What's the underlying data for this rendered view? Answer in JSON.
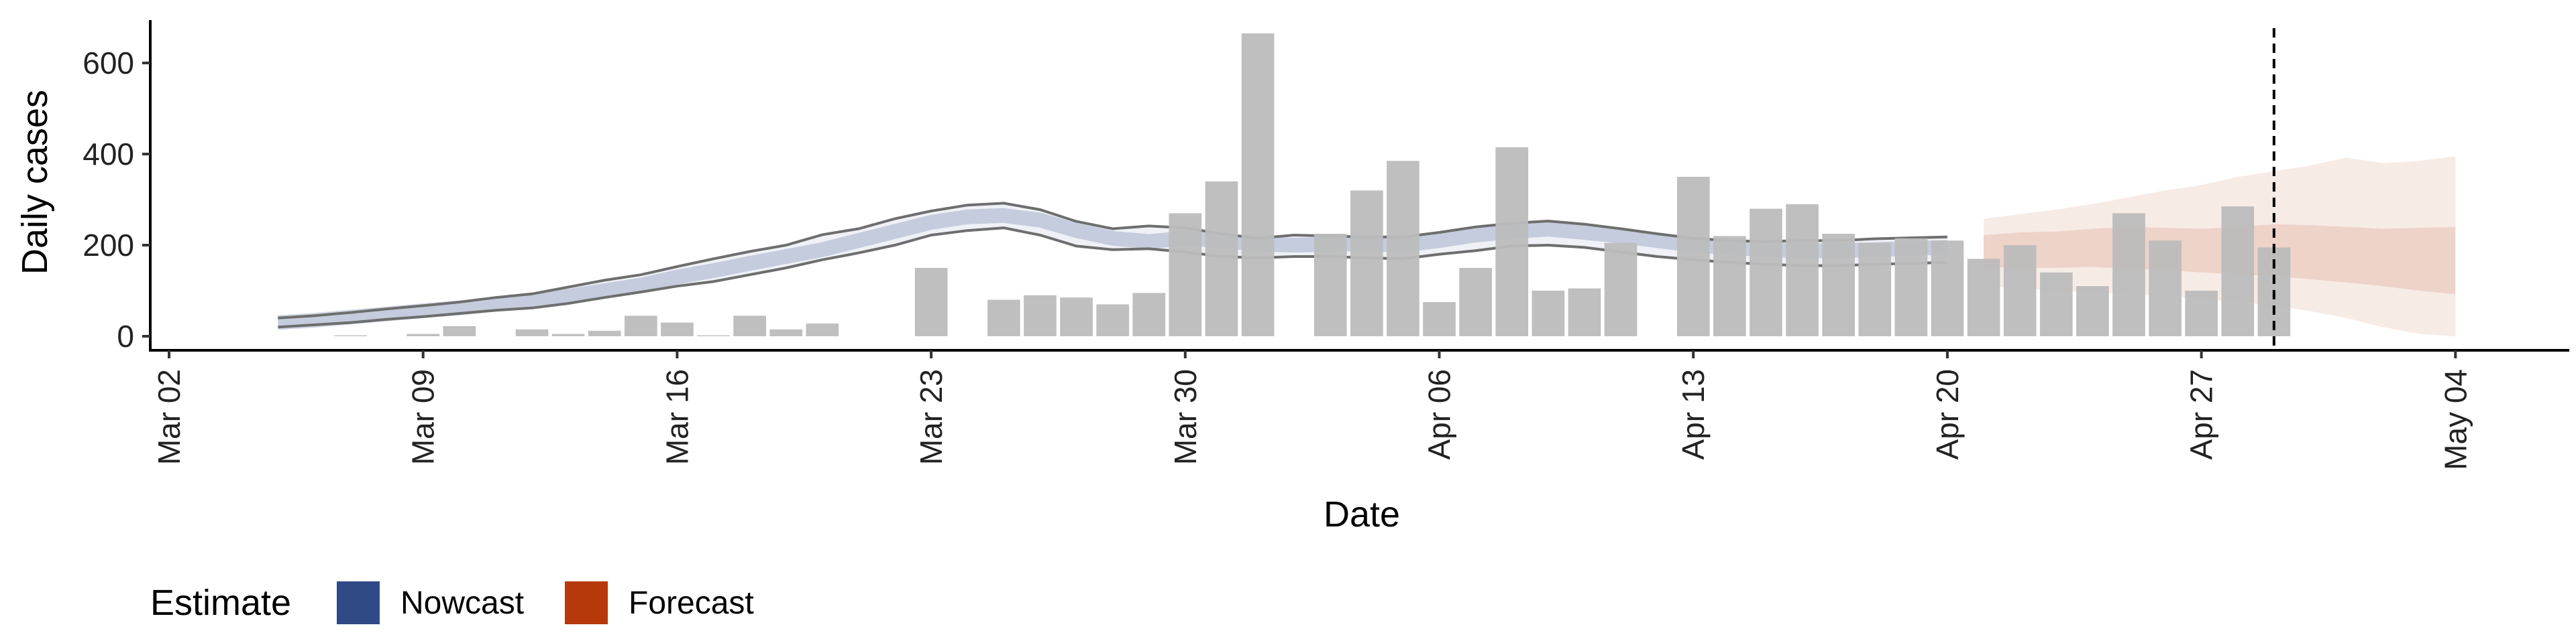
{
  "chart_data": {
    "type": "bar",
    "xlabel": "Date",
    "ylabel": "Daily cases",
    "xlim": [
      "2020-03-02",
      "2020-05-04"
    ],
    "ylim": [
      0,
      700
    ],
    "x_ticks": [
      "Mar 02",
      "Mar 09",
      "Mar 16",
      "Mar 23",
      "Mar 30",
      "Apr 06",
      "Apr 13",
      "Apr 20",
      "Apr 27",
      "May 04"
    ],
    "y_ticks": [
      0,
      200,
      400,
      600
    ],
    "grid": false,
    "reference_line_date": "2020-04-29",
    "legend": {
      "title": "Estimate",
      "position": "bottom-left",
      "entries": [
        {
          "label": "Nowcast",
          "color": "#2f4a86"
        },
        {
          "label": "Forecast",
          "color": "#b5390b"
        }
      ]
    },
    "colors": {
      "bars": "#bcbcbc",
      "nowcast": "#2f4a86",
      "forecast": "#b5390b",
      "outline": "#6e6e6e"
    },
    "bars": {
      "dates": [
        "2020-03-07",
        "2020-03-08",
        "2020-03-09",
        "2020-03-10",
        "2020-03-11",
        "2020-03-12",
        "2020-03-13",
        "2020-03-14",
        "2020-03-15",
        "2020-03-16",
        "2020-03-17",
        "2020-03-18",
        "2020-03-19",
        "2020-03-20",
        "2020-03-21",
        "2020-03-22",
        "2020-03-23",
        "2020-03-24",
        "2020-03-25",
        "2020-03-26",
        "2020-03-27",
        "2020-03-28",
        "2020-03-29",
        "2020-03-30",
        "2020-03-31",
        "2020-04-01",
        "2020-04-02",
        "2020-04-03",
        "2020-04-04",
        "2020-04-05",
        "2020-04-06",
        "2020-04-07",
        "2020-04-08",
        "2020-04-09",
        "2020-04-10",
        "2020-04-11",
        "2020-04-12",
        "2020-04-13",
        "2020-04-14",
        "2020-04-15",
        "2020-04-16",
        "2020-04-17",
        "2020-04-18",
        "2020-04-19",
        "2020-04-20",
        "2020-04-21",
        "2020-04-22",
        "2020-04-23",
        "2020-04-24",
        "2020-04-25",
        "2020-04-26",
        "2020-04-27",
        "2020-04-28",
        "2020-04-29"
      ],
      "values": [
        2,
        0,
        5,
        22,
        0,
        15,
        5,
        12,
        45,
        30,
        2,
        45,
        15,
        28,
        0,
        0,
        150,
        0,
        80,
        90,
        85,
        70,
        95,
        270,
        340,
        665,
        0,
        225,
        320,
        385,
        75,
        150,
        415,
        100,
        105,
        205,
        0,
        350,
        220,
        280,
        290,
        225,
        205,
        215,
        210,
        170,
        200,
        140,
        110,
        270,
        210,
        100,
        285,
        195
      ]
    },
    "nowcast": {
      "dates": [
        "2020-03-05",
        "2020-03-06",
        "2020-03-07",
        "2020-03-08",
        "2020-03-09",
        "2020-03-10",
        "2020-03-11",
        "2020-03-12",
        "2020-03-13",
        "2020-03-14",
        "2020-03-15",
        "2020-03-16",
        "2020-03-17",
        "2020-03-18",
        "2020-03-19",
        "2020-03-20",
        "2020-03-21",
        "2020-03-22",
        "2020-03-23",
        "2020-03-24",
        "2020-03-25",
        "2020-03-26",
        "2020-03-27",
        "2020-03-28",
        "2020-03-29",
        "2020-03-30",
        "2020-03-31",
        "2020-04-01",
        "2020-04-02",
        "2020-04-03",
        "2020-04-04",
        "2020-04-05",
        "2020-04-06",
        "2020-04-07",
        "2020-04-08",
        "2020-04-09",
        "2020-04-10",
        "2020-04-11",
        "2020-04-12",
        "2020-04-13",
        "2020-04-14",
        "2020-04-15",
        "2020-04-16",
        "2020-04-17",
        "2020-04-18",
        "2020-04-19",
        "2020-04-20"
      ],
      "median": [
        30,
        35,
        42,
        49,
        56,
        62,
        70,
        78,
        88,
        100,
        112,
        130,
        144,
        160,
        175,
        190,
        210,
        230,
        250,
        262,
        265,
        255,
        232,
        215,
        208,
        215,
        210,
        202,
        200,
        202,
        203,
        200,
        210,
        222,
        230,
        235,
        228,
        220,
        210,
        200,
        195,
        190,
        188,
        188,
        190,
        193,
        195
      ],
      "lower_90": [
        20,
        25,
        30,
        37,
        43,
        50,
        57,
        62,
        72,
        85,
        97,
        110,
        120,
        135,
        150,
        168,
        183,
        200,
        222,
        232,
        238,
        222,
        198,
        190,
        192,
        185,
        175,
        172,
        175,
        175,
        172,
        170,
        180,
        188,
        198,
        200,
        195,
        185,
        175,
        168,
        162,
        158,
        155,
        155,
        158,
        160,
        162
      ],
      "upper_90": [
        40,
        45,
        52,
        60,
        67,
        75,
        85,
        93,
        108,
        123,
        135,
        153,
        170,
        186,
        200,
        223,
        236,
        258,
        275,
        288,
        292,
        278,
        252,
        236,
        242,
        238,
        225,
        215,
        222,
        220,
        218,
        218,
        228,
        240,
        248,
        253,
        246,
        236,
        225,
        215,
        210,
        208,
        210,
        210,
        214,
        216,
        218
      ]
    },
    "forecast": {
      "dates": [
        "2020-04-21",
        "2020-04-22",
        "2020-04-23",
        "2020-04-24",
        "2020-04-25",
        "2020-04-26",
        "2020-04-27",
        "2020-04-28",
        "2020-04-29",
        "2020-04-30",
        "2020-05-01",
        "2020-05-02",
        "2020-05-03",
        "2020-05-04"
      ],
      "median": [
        190,
        190,
        192,
        195,
        198,
        200,
        202,
        200,
        195,
        188,
        180,
        175,
        172,
        170
      ],
      "lower_50": [
        152,
        150,
        150,
        152,
        148,
        145,
        140,
        136,
        132,
        125,
        118,
        110,
        100,
        92
      ],
      "upper_50": [
        222,
        228,
        230,
        236,
        240,
        238,
        236,
        240,
        246,
        244,
        240,
        236,
        238,
        240
      ],
      "lower_90": [
        110,
        105,
        100,
        96,
        92,
        88,
        82,
        75,
        68,
        55,
        40,
        20,
        5,
        0
      ],
      "upper_90": [
        258,
        268,
        278,
        290,
        305,
        320,
        332,
        350,
        362,
        375,
        392,
        380,
        385,
        395
      ]
    }
  }
}
